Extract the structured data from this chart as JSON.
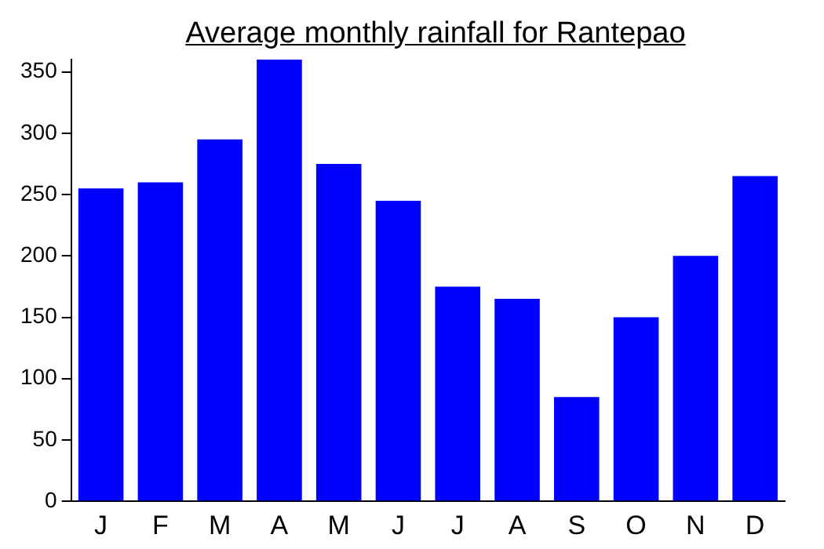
{
  "chart_data": {
    "type": "bar",
    "title": "Average monthly rainfall for Rantepao",
    "categories": [
      "J",
      "F",
      "M",
      "A",
      "M",
      "J",
      "J",
      "A",
      "S",
      "O",
      "N",
      "D"
    ],
    "values": [
      255,
      260,
      295,
      360,
      275,
      245,
      175,
      165,
      85,
      150,
      200,
      265
    ],
    "color": "#0000ff",
    "ylim": [
      0,
      360
    ],
    "yticks": [
      0,
      50,
      100,
      150,
      200,
      250,
      300,
      350
    ],
    "grid": false,
    "legend": false
  }
}
